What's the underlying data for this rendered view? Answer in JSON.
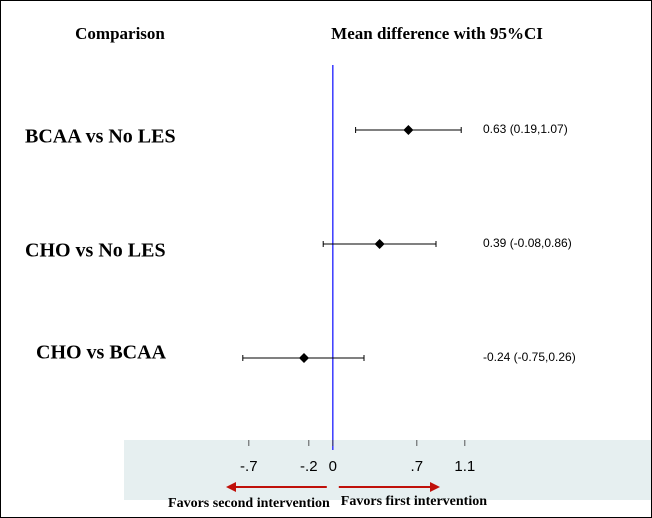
{
  "chart_data": {
    "type": "forest",
    "column_headers": [
      "Comparison",
      "Mean difference with 95%CI"
    ],
    "categories": [
      "BCAA vs No LES",
      "CHO vs No LES",
      "CHO vs BCAA"
    ],
    "values": [
      0.63,
      0.39,
      -0.24
    ],
    "lower": [
      0.19,
      -0.08,
      -0.75
    ],
    "upper": [
      1.07,
      0.86,
      0.26
    ],
    "value_labels": [
      "0.63 (0.19,1.07)",
      "0.39 (-0.08,0.86)",
      "-0.24 (-0.75,0.26)"
    ],
    "xlim": [
      -1.74,
      2.66
    ],
    "xticks": [
      {
        "value": -0.7,
        "label": "-.7"
      },
      {
        "value": -0.2,
        "label": "-.2"
      },
      0,
      {
        "value": 0.7,
        "label": ".7"
      },
      1.1
    ],
    "annotations": [
      "Favors second intervention",
      "Favors first intervention"
    ],
    "color": "#000000",
    "reference_line_color": "#3a3aff",
    "arrow_color": "#c0100a",
    "axis_panel_color": "#e6eff0"
  }
}
